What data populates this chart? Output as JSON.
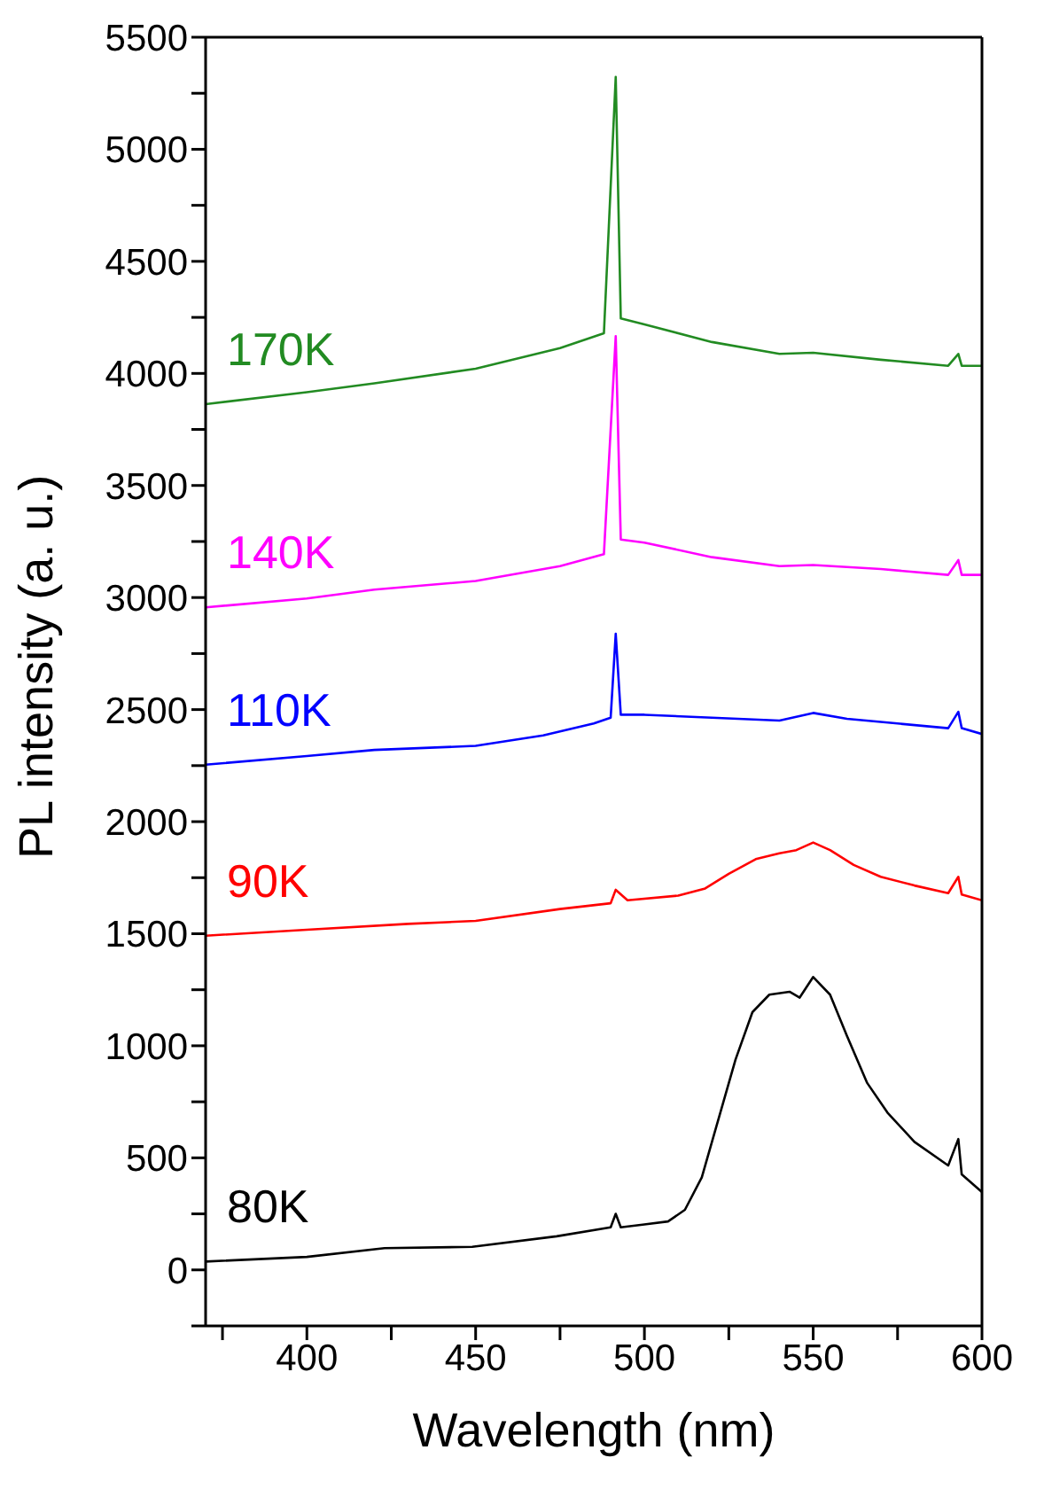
{
  "chart_data": {
    "type": "line",
    "xlabel": "Wavelength (nm)",
    "ylabel": "PL intensity (a. u.)",
    "xlim": [
      370,
      600
    ],
    "xticks": [
      {
        "value": 375,
        "label": null
      },
      400,
      {
        "value": 425,
        "label": null
      },
      450,
      {
        "value": 475,
        "label": null
      },
      500,
      {
        "value": 525,
        "label": null
      },
      550,
      {
        "value": 575,
        "label": null
      },
      600
    ],
    "ylim": [
      -250,
      5500
    ],
    "yticks": [
      {
        "value": -250,
        "label": null
      },
      0,
      {
        "value": 250,
        "label": null
      },
      500,
      {
        "value": 750,
        "label": null
      },
      1000,
      {
        "value": 1250,
        "label": null
      },
      1500,
      {
        "value": 1750,
        "label": null
      },
      2000,
      {
        "value": 2250,
        "label": null
      },
      2500,
      {
        "value": 2750,
        "label": null
      },
      3000,
      {
        "value": 3250,
        "label": null
      },
      3500,
      {
        "value": 3750,
        "label": null
      },
      4000,
      {
        "value": 4250,
        "label": null
      },
      4500,
      {
        "value": 4750,
        "label": null
      },
      5000,
      {
        "value": 5250,
        "label": null
      },
      5500
    ],
    "grid": false,
    "legend": false,
    "marker": "none",
    "line_style": "solid",
    "series": [
      {
        "name": "80K",
        "color": "#000000",
        "x": [
          370,
          400,
          423,
          449,
          474,
          490,
          491.5,
          493,
          500,
          507,
          512,
          517,
          522,
          527,
          532,
          537,
          543,
          546,
          550,
          555,
          560,
          566,
          572,
          580,
          590,
          593,
          594,
          600
        ],
        "values": [
          37,
          58,
          97,
          103,
          150,
          190,
          250,
          190,
          203,
          216,
          268,
          413,
          676,
          939,
          1150,
          1228,
          1241,
          1215,
          1307,
          1228,
          1044,
          834,
          702,
          571,
          466,
          584,
          426,
          347
        ]
      },
      {
        "name": "90K",
        "color": "#ff0000",
        "x": [
          370,
          400,
          430,
          450,
          475,
          490,
          491.5,
          495,
          510,
          518,
          525,
          533,
          540,
          545,
          550,
          555,
          562,
          570,
          580,
          590,
          593,
          594,
          600
        ],
        "values": [
          1491,
          1518,
          1544,
          1557,
          1610,
          1636,
          1696,
          1649,
          1670,
          1702,
          1767,
          1833,
          1859,
          1873,
          1907,
          1873,
          1807,
          1754,
          1715,
          1681,
          1754,
          1675,
          1649
        ]
      },
      {
        "name": "110K",
        "color": "#0000ff",
        "x": [
          370,
          400,
          420,
          450,
          470,
          485,
          490,
          491.5,
          493,
          500,
          520,
          540,
          550,
          560,
          575,
          590,
          593,
          594,
          600
        ],
        "values": [
          2254,
          2293,
          2320,
          2338,
          2385,
          2438,
          2464,
          2838,
          2477,
          2477,
          2464,
          2451,
          2485,
          2459,
          2438,
          2417,
          2490,
          2417,
          2391
        ]
      },
      {
        "name": "140K",
        "color": "#ff00ff",
        "x": [
          370,
          400,
          420,
          450,
          475,
          488,
          491.5,
          493,
          500,
          520,
          540,
          550,
          570,
          590,
          593,
          594,
          600
        ],
        "values": [
          2956,
          2996,
          3035,
          3074,
          3140,
          3193,
          4166,
          3259,
          3245,
          3180,
          3140,
          3145,
          3127,
          3101,
          3167,
          3101,
          3101
        ]
      },
      {
        "name": "170K",
        "color": "#228b22",
        "x": [
          370,
          400,
          420,
          450,
          475,
          488,
          491.5,
          493,
          500,
          520,
          540,
          550,
          570,
          590,
          593,
          594,
          600
        ],
        "values": [
          3863,
          3916,
          3956,
          4021,
          4113,
          4179,
          5323,
          4245,
          4219,
          4140,
          4087,
          4092,
          4061,
          4034,
          4087,
          4034,
          4034
        ]
      }
    ]
  }
}
